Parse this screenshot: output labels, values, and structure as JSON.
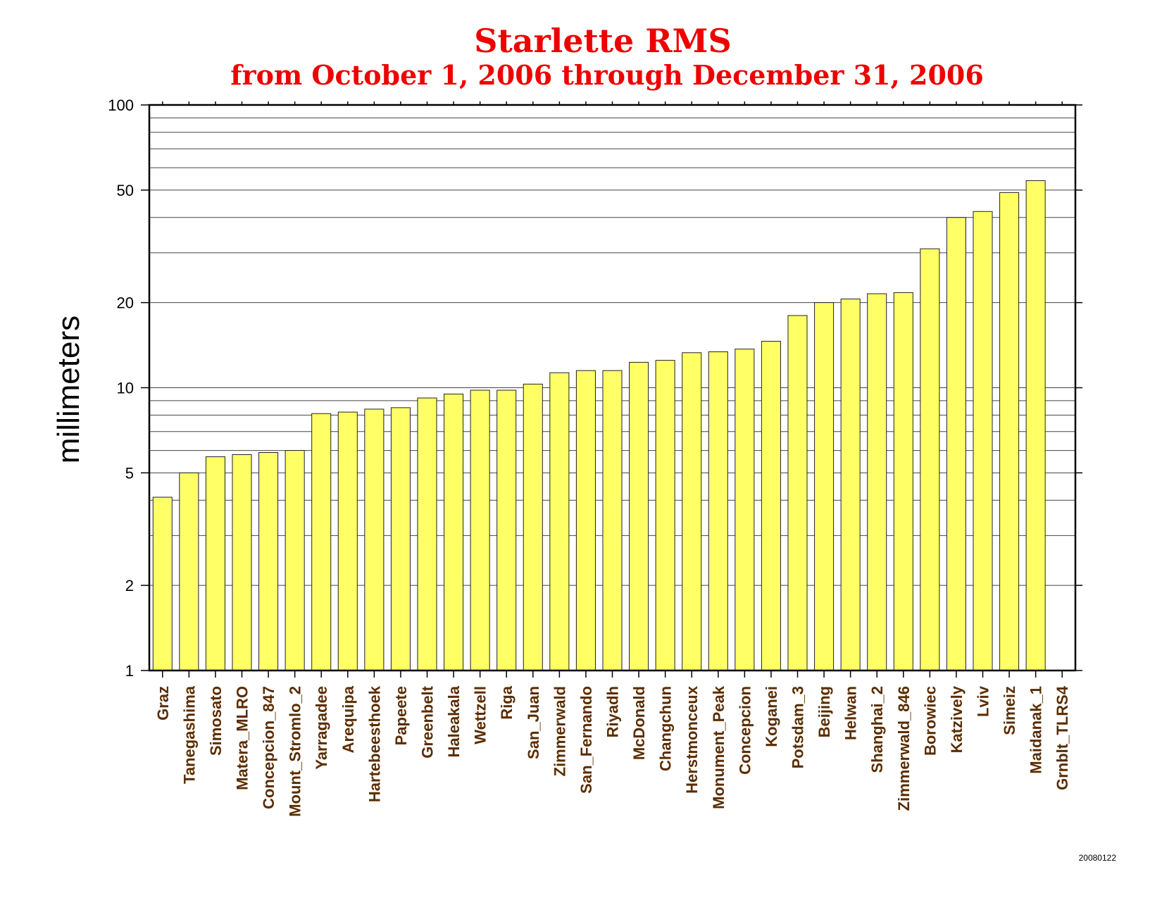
{
  "chart_data": {
    "type": "bar",
    "title": "Starlette RMS",
    "subtitle": "from October 1, 2006 through December 31, 2006",
    "xlabel": "",
    "ylabel": "millimeters",
    "yscale": "log",
    "ylim": [
      1,
      100
    ],
    "yticks": [
      "1",
      "2",
      "5",
      "10",
      "20",
      "50",
      "100"
    ],
    "grid": true,
    "bar_color": "#ffff66",
    "categories": [
      "Graz",
      "Tanegashima",
      "Simosato",
      "Matera_MLRO",
      "Concepcion_847",
      "Mount_Stromlo_2",
      "Yarragadee",
      "Arequipa",
      "Hartebeesthoek",
      "Papeete",
      "Greenbelt",
      "Haleakala",
      "Wettzell",
      "Riga",
      "San_Juan",
      "Zimmerwald",
      "San_Fernando",
      "Riyadh",
      "McDonald",
      "Changchun",
      "Herstmonceux",
      "Monument_Peak",
      "Concepcion",
      "Koganei",
      "Potsdam_3",
      "Beijing",
      "Helwan",
      "Shanghai_2",
      "Zimmerwald_846",
      "Borowiec",
      "Katzively",
      "Lviv",
      "Simeiz",
      "Maidanak_1",
      "Grnblt_TLRS4"
    ],
    "values": [
      4.1,
      5.0,
      5.7,
      5.8,
      5.9,
      6.0,
      8.1,
      8.2,
      8.4,
      8.5,
      9.2,
      9.5,
      9.8,
      9.8,
      10.3,
      11.3,
      11.5,
      11.5,
      12.3,
      12.5,
      13.3,
      13.4,
      13.7,
      14.6,
      18.0,
      20.0,
      20.6,
      21.5,
      21.7,
      31.0,
      40.0,
      42.0,
      49.0,
      54.0,
      null
    ],
    "stamp": "20080122"
  }
}
